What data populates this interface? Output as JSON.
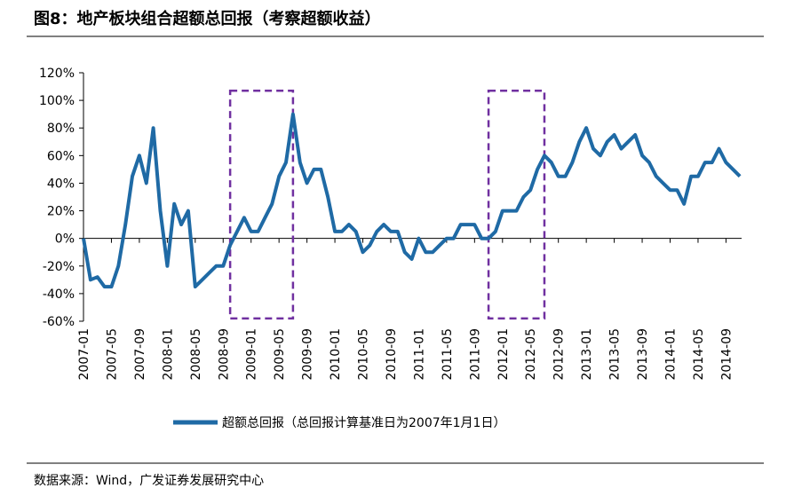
{
  "chart_data": {
    "type": "line",
    "title": "图8：地产板块组合超额总回报（考察超额收益）",
    "source": "数据来源：Wind，广发证券发展研究中心",
    "x": [
      "2007-01",
      "2007-02",
      "2007-03",
      "2007-04",
      "2007-05",
      "2007-06",
      "2007-07",
      "2007-08",
      "2007-09",
      "2007-10",
      "2007-11",
      "2007-12",
      "2008-01",
      "2008-02",
      "2008-03",
      "2008-04",
      "2008-05",
      "2008-06",
      "2008-07",
      "2008-08",
      "2008-09",
      "2008-10",
      "2008-11",
      "2008-12",
      "2009-01",
      "2009-02",
      "2009-03",
      "2009-04",
      "2009-05",
      "2009-06",
      "2009-07",
      "2009-08",
      "2009-09",
      "2009-10",
      "2009-11",
      "2009-12",
      "2010-01",
      "2010-02",
      "2010-03",
      "2010-04",
      "2010-05",
      "2010-06",
      "2010-07",
      "2010-08",
      "2010-09",
      "2010-10",
      "2010-11",
      "2010-12",
      "2011-01",
      "2011-02",
      "2011-03",
      "2011-04",
      "2011-05",
      "2011-06",
      "2011-07",
      "2011-08",
      "2011-09",
      "2011-10",
      "2011-11",
      "2011-12",
      "2012-01",
      "2012-02",
      "2012-03",
      "2012-04",
      "2012-05",
      "2012-06",
      "2012-07",
      "2012-08",
      "2012-09",
      "2012-10",
      "2012-11",
      "2012-12",
      "2013-01",
      "2013-02",
      "2013-03",
      "2013-04",
      "2013-05",
      "2013-06",
      "2013-07",
      "2013-08",
      "2013-09",
      "2013-10",
      "2013-11",
      "2013-12",
      "2014-01",
      "2014-02",
      "2014-03",
      "2014-04",
      "2014-05",
      "2014-06",
      "2014-07",
      "2014-08",
      "2014-09",
      "2014-10",
      "2014-11"
    ],
    "series": [
      {
        "name": "超额总回报（总回报计算基准日为2007年1月1日）",
        "color": "#1f6aa5",
        "values": [
          0,
          -30,
          -28,
          -35,
          -35,
          -20,
          10,
          45,
          60,
          40,
          80,
          20,
          -20,
          25,
          10,
          20,
          -35,
          -30,
          -25,
          -20,
          -20,
          -5,
          5,
          15,
          5,
          5,
          15,
          25,
          45,
          55,
          90,
          55,
          40,
          50,
          50,
          30,
          5,
          5,
          10,
          5,
          -10,
          -5,
          5,
          10,
          5,
          5,
          -10,
          -15,
          0,
          -10,
          -10,
          -5,
          0,
          0,
          10,
          10,
          10,
          0,
          0,
          5,
          20,
          20,
          20,
          30,
          35,
          50,
          60,
          55,
          45,
          45,
          55,
          70,
          80,
          65,
          60,
          70,
          75,
          65,
          70,
          75,
          60,
          55,
          45,
          40,
          35,
          35,
          25,
          45,
          45,
          55,
          55,
          65,
          55,
          50,
          45
        ]
      }
    ],
    "xlim": [
      "2007-01",
      "2014-12"
    ],
    "xticks": [
      "2007-01",
      "2007-05",
      "2007-09",
      "2008-01",
      "2008-05",
      "2008-09",
      "2009-01",
      "2009-05",
      "2009-09",
      "2010-01",
      "2010-05",
      "2010-09",
      "2011-01",
      "2011-05",
      "2011-09",
      "2012-01",
      "2012-05",
      "2012-09",
      "2013-01",
      "2013-05",
      "2013-09",
      "2014-01",
      "2014-05",
      "2014-09"
    ],
    "ylim": [
      -60,
      120
    ],
    "yticks": [
      {
        "value": -60,
        "label": "-60%"
      },
      {
        "value": -40,
        "label": "-40%"
      },
      {
        "value": -20,
        "label": "-20%"
      },
      {
        "value": 0,
        "label": "0%"
      },
      {
        "value": 20,
        "label": "20%"
      },
      {
        "value": 40,
        "label": "40%"
      },
      {
        "value": 60,
        "label": "60%"
      },
      {
        "value": 80,
        "label": "80%"
      },
      {
        "value": 100,
        "label": "100%"
      },
      {
        "value": 120,
        "label": "120%"
      }
    ],
    "highlights": [
      {
        "x": [
          "2008-10",
          "2009-07"
        ],
        "y": [
          -58,
          107
        ],
        "color": "#7030a0"
      },
      {
        "x": [
          "2011-11",
          "2012-07"
        ],
        "y": [
          -58,
          107
        ],
        "color": "#7030a0"
      }
    ]
  }
}
